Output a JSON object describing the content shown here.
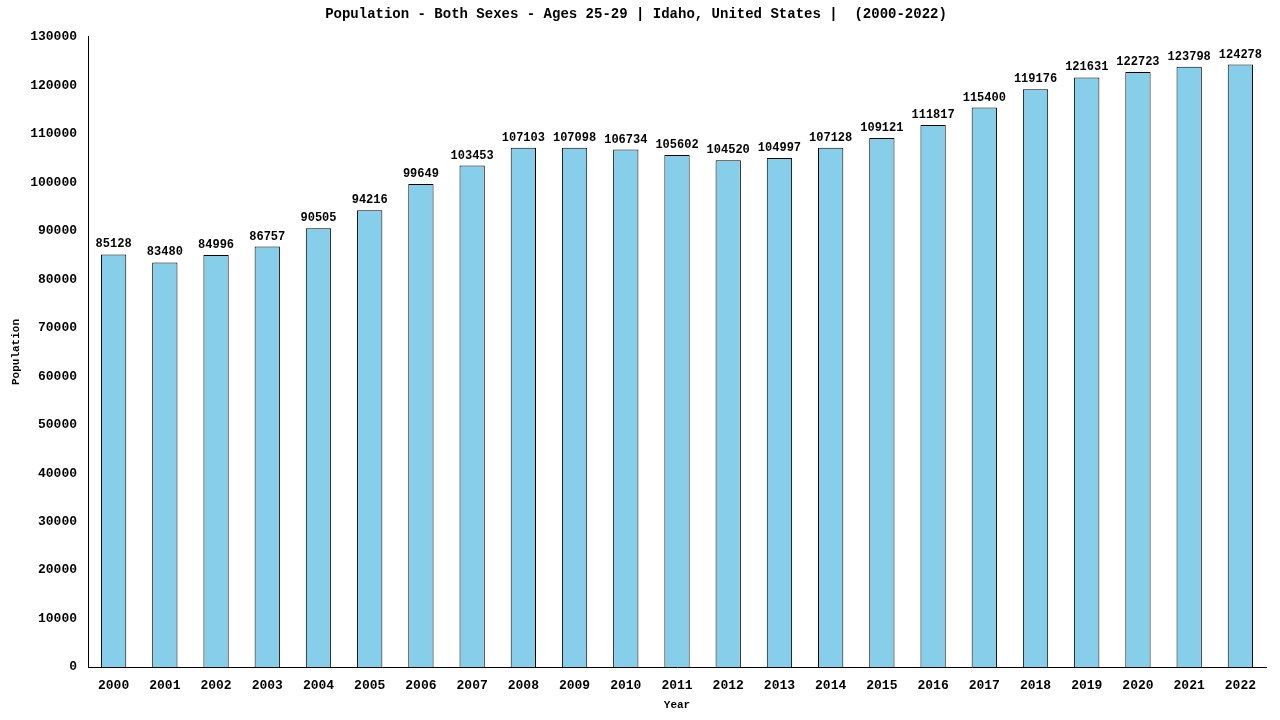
{
  "chart_data": {
    "type": "bar",
    "title": "Population - Both Sexes - Ages 25-29 | Idaho, United States |  (2000-2022)",
    "x_label": "Year",
    "y_label": "Population",
    "categories": [
      "2000",
      "2001",
      "2002",
      "2003",
      "2004",
      "2005",
      "2006",
      "2007",
      "2008",
      "2009",
      "2010",
      "2011",
      "2012",
      "2013",
      "2014",
      "2015",
      "2016",
      "2017",
      "2018",
      "2019",
      "2020",
      "2021",
      "2022"
    ],
    "values": [
      85128,
      83480,
      84996,
      86757,
      90505,
      94216,
      99649,
      103453,
      107103,
      107098,
      106734,
      105602,
      104520,
      104997,
      107128,
      109121,
      111817,
      115400,
      119176,
      121631,
      122723,
      123798,
      124278
    ],
    "color": "#87ceeb",
    "ylim": [
      0,
      130000
    ],
    "yticks": [
      0,
      10000,
      20000,
      30000,
      40000,
      50000,
      60000,
      70000,
      80000,
      90000,
      100000,
      110000,
      120000,
      130000
    ],
    "grid": false,
    "data_labels": true
  }
}
